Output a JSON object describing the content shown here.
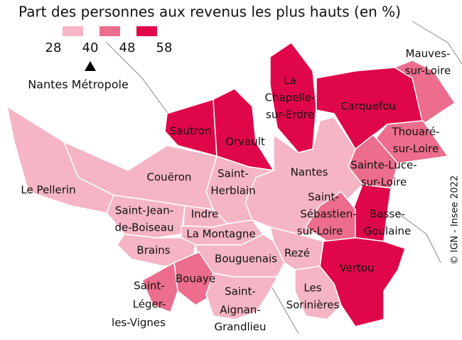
{
  "title": "Part des personnes aux revenus les plus hauts (en %)",
  "legend": {
    "breaks": [
      28,
      40,
      48,
      58
    ],
    "colors": [
      "#f5b5c5",
      "#ec6d8d",
      "#e0064a"
    ]
  },
  "reference": {
    "label": "Nantes Métropole",
    "value": 40
  },
  "credit": "© IGN - Insee 2022",
  "communes": [
    {
      "lines": [
        "Sautron"
      ],
      "color": "#e0064a"
    },
    {
      "lines": [
        "Orvault"
      ],
      "color": "#e0064a"
    },
    {
      "lines": [
        "La",
        "Chapelle-",
        "sur-Erdre"
      ],
      "color": "#e0064a"
    },
    {
      "lines": [
        "Carquefou"
      ],
      "color": "#e0064a"
    },
    {
      "lines": [
        "Mauves-",
        "sur-Loire"
      ],
      "color": "#ec6d8d"
    },
    {
      "lines": [
        "Thouaré-",
        "sur-Loire"
      ],
      "color": "#ec6d8d"
    },
    {
      "lines": [
        "Sainte-Luce-",
        "sur-Loire"
      ],
      "color": "#ec6d8d"
    },
    {
      "lines": [
        "Nantes"
      ],
      "color": "#f5b5c5"
    },
    {
      "lines": [
        "Basse-",
        "Goulaine"
      ],
      "color": "#e0064a"
    },
    {
      "lines": [
        "Saint-",
        "Sébastien-",
        "sur-Loire"
      ],
      "color": "#ec6d8d"
    },
    {
      "lines": [
        "Vertou"
      ],
      "color": "#e0064a"
    },
    {
      "lines": [
        "Les",
        "Sorinières"
      ],
      "color": "#f5b5c5"
    },
    {
      "lines": [
        "Rezé"
      ],
      "color": "#f5b5c5"
    },
    {
      "lines": [
        "Saint-",
        "Herblain"
      ],
      "color": "#f5b5c5"
    },
    {
      "lines": [
        "Couëron"
      ],
      "color": "#f5b5c5"
    },
    {
      "lines": [
        "Le Pellerin"
      ],
      "color": "#f5b5c5"
    },
    {
      "lines": [
        "Saint-Jean-",
        "de-Boiseau"
      ],
      "color": "#f5b5c5"
    },
    {
      "lines": [
        "Indre"
      ],
      "color": "#f5b5c5"
    },
    {
      "lines": [
        "La Montagne"
      ],
      "color": "#f5b5c5"
    },
    {
      "lines": [
        "Brains"
      ],
      "color": "#f5b5c5"
    },
    {
      "lines": [
        "Bouguenais"
      ],
      "color": "#f5b5c5"
    },
    {
      "lines": [
        "Bouaye"
      ],
      "color": "#ec6d8d"
    },
    {
      "lines": [
        "Saint-",
        "Léger-",
        "les-Vignes"
      ],
      "color": "#ec6d8d"
    },
    {
      "lines": [
        "Saint-",
        "Aignan-",
        "Grandlieu"
      ],
      "color": "#f5b5c5"
    }
  ]
}
